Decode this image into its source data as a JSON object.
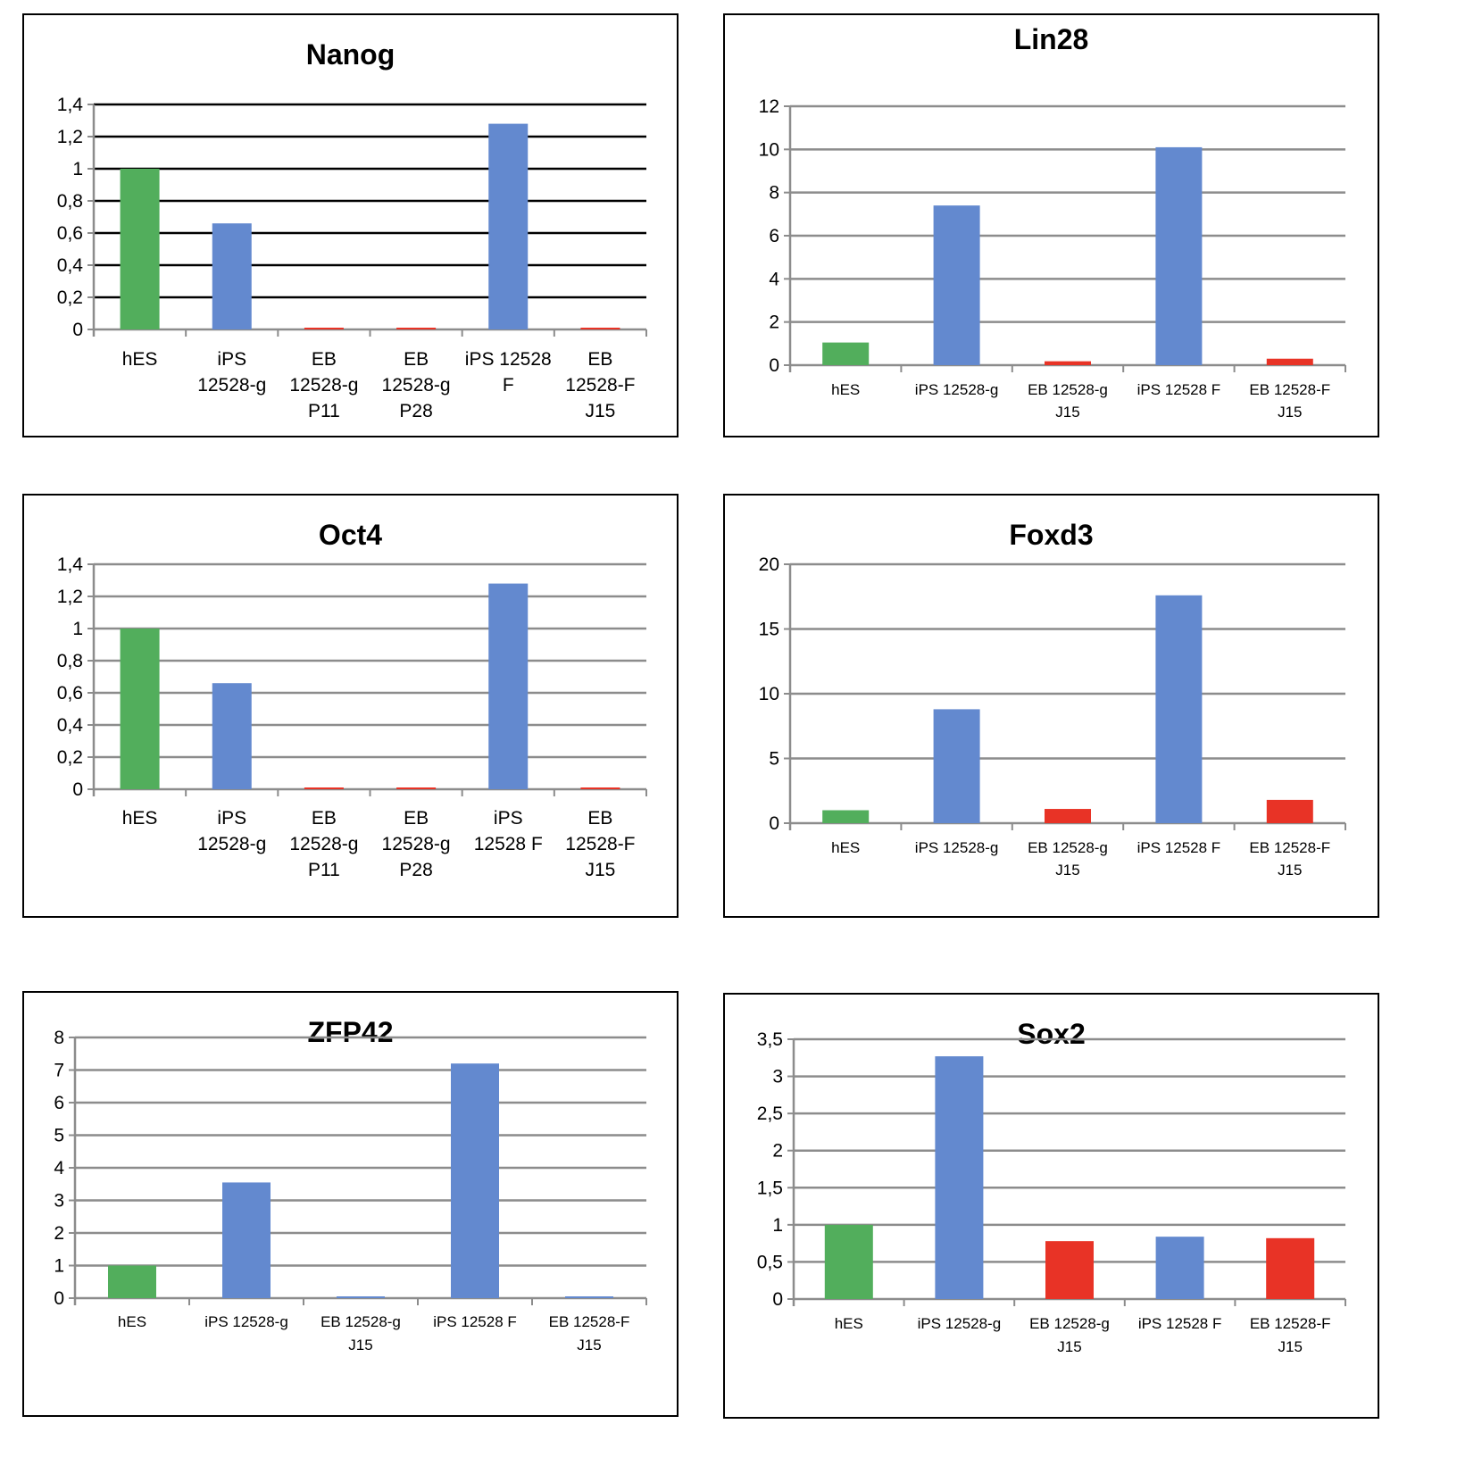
{
  "colors": {
    "reference": "#52ae5c",
    "ips": "#6389cf",
    "eb": "#e83326",
    "grid_dark": "#000000",
    "grid_gray": "#8c8c8c"
  },
  "chart_data": [
    {
      "type": "bar",
      "title": "Nanog",
      "xlabel": "",
      "ylabel": "",
      "ylim": [
        0,
        1.4
      ],
      "yticks": [
        "0",
        "0,2",
        "0,4",
        "0,6",
        "0,8",
        "1",
        "1,2",
        "1,4"
      ],
      "ytick_values": [
        0,
        0.2,
        0.4,
        0.6,
        0.8,
        1,
        1.2,
        1.4
      ],
      "categories": [
        [
          "hES"
        ],
        [
          "iPS",
          "12528-g"
        ],
        [
          "EB",
          "12528-g",
          "P11"
        ],
        [
          "EB",
          "12528-g",
          "P28"
        ],
        [
          "iPS 12528",
          "F"
        ],
        [
          "EB",
          "12528-F",
          "J15"
        ]
      ],
      "values": [
        1.0,
        0.66,
        0.01,
        0.01,
        1.28,
        0.01
      ],
      "bar_colors": [
        "reference",
        "ips",
        "eb",
        "eb",
        "ips",
        "eb"
      ],
      "grid": true,
      "grid_style": "dark"
    },
    {
      "type": "bar",
      "title": "Lin28",
      "xlabel": "",
      "ylabel": "",
      "ylim": [
        0,
        12
      ],
      "yticks": [
        "0",
        "2",
        "4",
        "6",
        "8",
        "10",
        "12"
      ],
      "ytick_values": [
        0,
        2,
        4,
        6,
        8,
        10,
        12
      ],
      "categories": [
        [
          "hES"
        ],
        [
          "iPS 12528-g"
        ],
        [
          "EB 12528-g",
          "J15"
        ],
        [
          "iPS 12528 F"
        ],
        [
          "EB 12528-F",
          "J15"
        ]
      ],
      "values": [
        1.05,
        7.4,
        0.18,
        10.1,
        0.3
      ],
      "bar_colors": [
        "reference",
        "ips",
        "eb",
        "ips",
        "eb"
      ],
      "grid": true,
      "grid_style": "gray"
    },
    {
      "type": "bar",
      "title": "Oct4",
      "xlabel": "",
      "ylabel": "",
      "ylim": [
        0,
        1.4
      ],
      "yticks": [
        "0",
        "0,2",
        "0,4",
        "0,6",
        "0,8",
        "1",
        "1,2",
        "1,4"
      ],
      "ytick_values": [
        0,
        0.2,
        0.4,
        0.6,
        0.8,
        1,
        1.2,
        1.4
      ],
      "categories": [
        [
          "hES"
        ],
        [
          "iPS",
          "12528-g"
        ],
        [
          "EB",
          "12528-g",
          "P11"
        ],
        [
          "EB",
          "12528-g",
          "P28"
        ],
        [
          "iPS",
          "12528 F"
        ],
        [
          "EB",
          "12528-F",
          "J15"
        ]
      ],
      "values": [
        1.0,
        0.66,
        0.01,
        0.01,
        1.28,
        0.01
      ],
      "bar_colors": [
        "reference",
        "ips",
        "eb",
        "eb",
        "ips",
        "eb"
      ],
      "grid": true,
      "grid_style": "gray"
    },
    {
      "type": "bar",
      "title": "Foxd3",
      "xlabel": "",
      "ylabel": "",
      "ylim": [
        0,
        20
      ],
      "yticks": [
        "0",
        "5",
        "10",
        "15",
        "20"
      ],
      "ytick_values": [
        0,
        5,
        10,
        15,
        20
      ],
      "categories": [
        [
          "hES"
        ],
        [
          "iPS 12528-g"
        ],
        [
          "EB 12528-g",
          "J15"
        ],
        [
          "iPS 12528 F"
        ],
        [
          "EB 12528-F",
          "J15"
        ]
      ],
      "values": [
        1.0,
        8.8,
        1.1,
        17.6,
        1.8
      ],
      "bar_colors": [
        "reference",
        "ips",
        "eb",
        "ips",
        "eb"
      ],
      "grid": true,
      "grid_style": "gray"
    },
    {
      "type": "bar",
      "title": "ZFP42",
      "xlabel": "",
      "ylabel": "",
      "ylim": [
        0,
        8
      ],
      "yticks": [
        "0",
        "1",
        "2",
        "3",
        "4",
        "5",
        "6",
        "7",
        "8"
      ],
      "ytick_values": [
        0,
        1,
        2,
        3,
        4,
        5,
        6,
        7,
        8
      ],
      "categories": [
        [
          "hES"
        ],
        [
          "iPS 12528-g"
        ],
        [
          "EB 12528-g",
          "J15"
        ],
        [
          "iPS 12528 F"
        ],
        [
          "EB 12528-F",
          "J15"
        ]
      ],
      "values": [
        1.0,
        3.55,
        0.05,
        7.2,
        0.05
      ],
      "bar_colors": [
        "reference",
        "ips",
        "ips",
        "ips",
        "ips"
      ],
      "grid": true,
      "grid_style": "gray"
    },
    {
      "type": "bar",
      "title": "Sox2",
      "xlabel": "",
      "ylabel": "",
      "ylim": [
        0,
        3.5
      ],
      "yticks": [
        "0",
        "0,5",
        "1",
        "1,5",
        "2",
        "2,5",
        "3",
        "3,5"
      ],
      "ytick_values": [
        0,
        0.5,
        1,
        1.5,
        2,
        2.5,
        3,
        3.5
      ],
      "categories": [
        [
          "hES"
        ],
        [
          "iPS 12528-g"
        ],
        [
          "EB 12528-g",
          "J15"
        ],
        [
          "iPS 12528 F"
        ],
        [
          "EB 12528-F",
          "J15"
        ]
      ],
      "values": [
        1.0,
        3.27,
        0.78,
        0.84,
        0.82
      ],
      "bar_colors": [
        "reference",
        "ips",
        "eb",
        "ips",
        "eb"
      ],
      "grid": true,
      "grid_style": "gray"
    }
  ]
}
